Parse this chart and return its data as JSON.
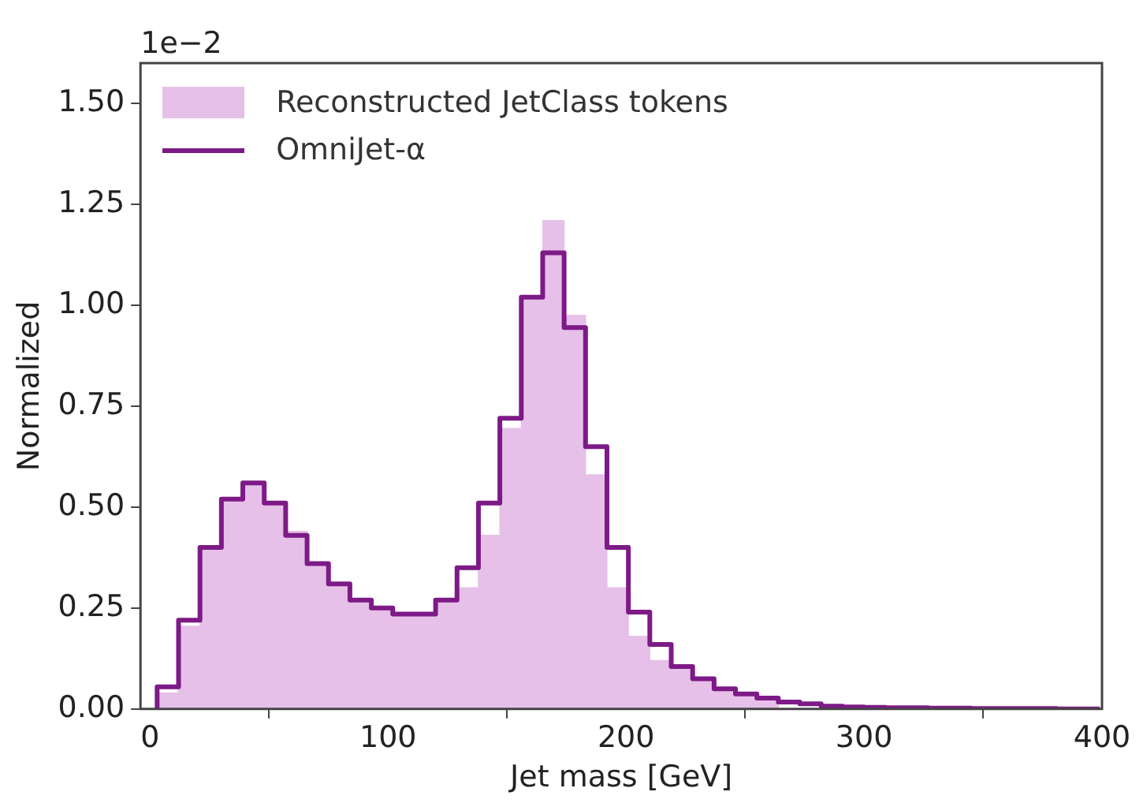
{
  "chart_data": {
    "type": "histogram",
    "xlabel": "Jet mass [GeV]",
    "ylabel": "Normalized",
    "annotations": [
      "1e−2"
    ],
    "bins": [
      3,
      12,
      21,
      30,
      39,
      48,
      57,
      66,
      75,
      84,
      93,
      102,
      111,
      120,
      129,
      138,
      147,
      156,
      165,
      174,
      183,
      192,
      201,
      210,
      219,
      228,
      237,
      246,
      255,
      264,
      273,
      282,
      291,
      300,
      309,
      318,
      327,
      336,
      345,
      354,
      363,
      372,
      381,
      390,
      399
    ],
    "series": [
      {
        "name": "Reconstructed JetClass tokens",
        "color": "#e6c0e9",
        "values": [
          0.04,
          0.205,
          0.4,
          0.52,
          0.56,
          0.51,
          0.44,
          0.36,
          0.31,
          0.27,
          0.25,
          0.235,
          0.235,
          0.27,
          0.3,
          0.43,
          0.695,
          1.02,
          1.21,
          0.975,
          0.58,
          0.3,
          0.18,
          0.12,
          0.1,
          0.07,
          0.048,
          0.035,
          0.025,
          null,
          null,
          null,
          0.005,
          0.004,
          0.003,
          0.003,
          0.002,
          0.002,
          0.001,
          0.001,
          0.001,
          0.001,
          0,
          0
        ]
      },
      {
        "name": "OmniJet-α",
        "type": "step",
        "color": "#7d1a87",
        "x": [
          3,
          12,
          21,
          30,
          39,
          48,
          57,
          66,
          75,
          84,
          93,
          102,
          111,
          120,
          129,
          138,
          147,
          156,
          165,
          174,
          183,
          192,
          201,
          210,
          219,
          228,
          237,
          246,
          255,
          264,
          273,
          282,
          291,
          300,
          309,
          318,
          327,
          336,
          345,
          354,
          363,
          372,
          381,
          390,
          399
        ],
        "values": [
          0,
          0.055,
          0.22,
          0.4,
          0.52,
          0.56,
          0.51,
          0.43,
          0.36,
          0.31,
          0.27,
          0.25,
          0.235,
          0.235,
          0.27,
          0.35,
          0.51,
          0.72,
          1.02,
          1.13,
          0.945,
          0.65,
          0.4,
          0.24,
          0.16,
          0.105,
          0.075,
          0.05,
          0.037,
          0.027,
          0.017,
          0.013,
          0.007,
          0.005,
          0.004,
          0.003,
          0.003,
          0.002,
          0.002,
          0.001,
          0.001,
          0.001,
          0.001,
          0,
          0
        ]
      }
    ],
    "xlim": [
      -4,
      400
    ],
    "xticks": [
      0,
      100,
      200,
      300,
      400
    ],
    "ylim": [
      0,
      1.6
    ],
    "yticks": [
      {
        "value": 0,
        "label": "0.00"
      },
      {
        "value": 0.25,
        "label": "0.25"
      },
      {
        "value": 0.5,
        "label": "0.50"
      },
      {
        "value": 0.75,
        "label": "0.75"
      },
      {
        "value": 1,
        "label": "1.00"
      },
      {
        "value": 1.25,
        "label": "1.25"
      },
      {
        "value": 1.5,
        "label": "1.50"
      }
    ],
    "legend": "top left"
  }
}
